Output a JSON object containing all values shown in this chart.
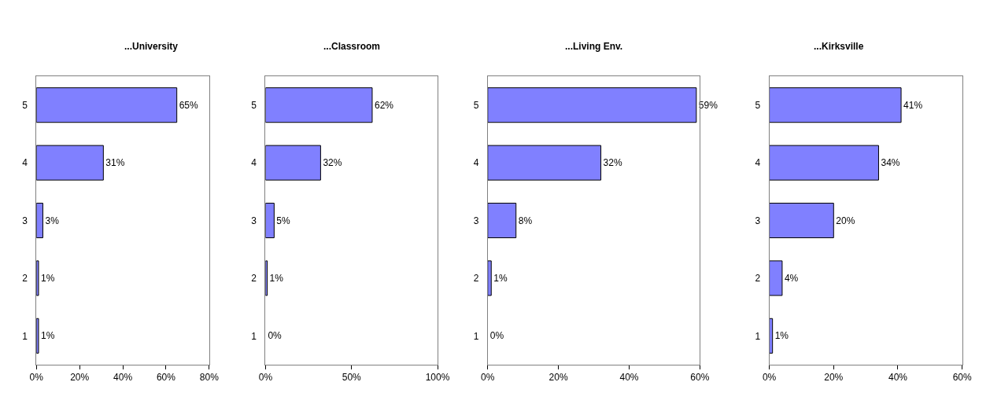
{
  "chart_data": [
    {
      "type": "bar",
      "orientation": "horizontal",
      "title": "...University",
      "categories": [
        "5",
        "4",
        "3",
        "2",
        "1"
      ],
      "values": [
        65,
        31,
        3,
        1,
        1
      ],
      "value_labels": [
        "65%",
        "31%",
        "3%",
        "1%",
        "1%"
      ],
      "color": "#8080ff",
      "xlim": [
        0,
        80
      ],
      "xticks": [
        {
          "value": 0,
          "label": "0%"
        },
        {
          "value": 20,
          "label": "20%"
        },
        {
          "value": 40,
          "label": "40%"
        },
        {
          "value": 60,
          "label": "60%"
        },
        {
          "value": 80,
          "label": "80%"
        }
      ],
      "legend": false
    },
    {
      "type": "bar",
      "orientation": "horizontal",
      "title": "...Classroom",
      "categories": [
        "5",
        "4",
        "3",
        "2",
        "1"
      ],
      "values": [
        62,
        32,
        5,
        1,
        0
      ],
      "value_labels": [
        "62%",
        "32%",
        "5%",
        "1%",
        "0%"
      ],
      "color": "#8080ff",
      "xlim": [
        0,
        100
      ],
      "xticks": [
        {
          "value": 0,
          "label": "0%"
        },
        {
          "value": 50,
          "label": "50%"
        },
        {
          "value": 100,
          "label": "100%"
        }
      ],
      "legend": false
    },
    {
      "type": "bar",
      "orientation": "horizontal",
      "title": "...Living Env.",
      "categories": [
        "5",
        "4",
        "3",
        "2",
        "1"
      ],
      "values": [
        59,
        32,
        8,
        1,
        0
      ],
      "value_labels": [
        "59%",
        "32%",
        "8%",
        "1%",
        "0%"
      ],
      "color": "#8080ff",
      "xlim": [
        0,
        60
      ],
      "xticks": [
        {
          "value": 0,
          "label": "0%"
        },
        {
          "value": 20,
          "label": "20%"
        },
        {
          "value": 40,
          "label": "40%"
        },
        {
          "value": 60,
          "label": "60%"
        }
      ],
      "legend": false
    },
    {
      "type": "bar",
      "orientation": "horizontal",
      "title": "...Kirksville",
      "categories": [
        "5",
        "4",
        "3",
        "2",
        "1"
      ],
      "values": [
        41,
        34,
        20,
        4,
        1
      ],
      "value_labels": [
        "41%",
        "34%",
        "20%",
        "4%",
        "1%"
      ],
      "color": "#8080ff",
      "xlim": [
        0,
        60
      ],
      "xticks": [
        {
          "value": 0,
          "label": "0%"
        },
        {
          "value": 20,
          "label": "20%"
        },
        {
          "value": 40,
          "label": "40%"
        },
        {
          "value": 60,
          "label": "60%"
        }
      ],
      "legend": false
    }
  ]
}
